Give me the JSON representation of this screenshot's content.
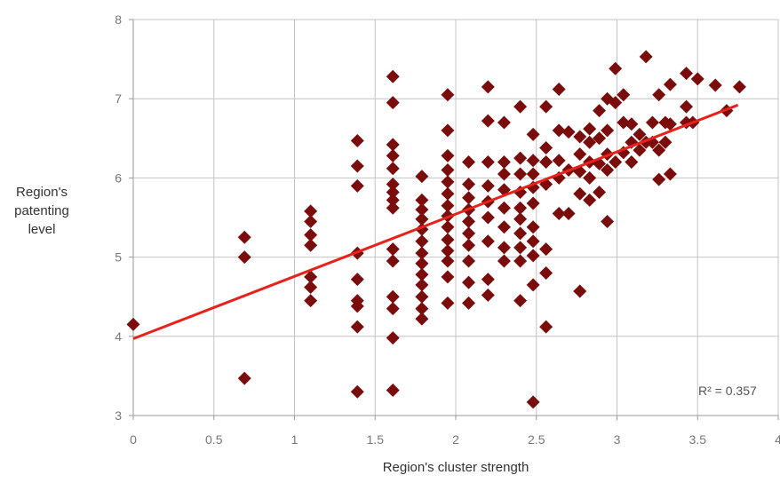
{
  "chart_data": {
    "type": "scatter",
    "xlabel_lines": [
      "Region's cluster strength"
    ],
    "ylabel_lines": [
      "Region's",
      "patenting",
      "level"
    ],
    "xlim": [
      0,
      4
    ],
    "ylim": [
      3,
      8
    ],
    "x_ticks": [
      "0",
      "0.5",
      "1",
      "1.5",
      "2",
      "2.5",
      "3",
      "3.5",
      "4"
    ],
    "y_ticks": [
      "3",
      "4",
      "5",
      "6",
      "7",
      "8"
    ],
    "grid": true,
    "marker": "diamond",
    "marker_color": "#7b0c0c",
    "trendline": {
      "color": "#e8221b",
      "x": [
        0,
        3.75
      ],
      "y": [
        3.97,
        6.92
      ]
    },
    "r_squared_label": "R² = 0.357",
    "points": [
      [
        0,
        4.15
      ],
      [
        0.69,
        5.25
      ],
      [
        0.69,
        5.0
      ],
      [
        0.69,
        3.47
      ],
      [
        1.1,
        5.58
      ],
      [
        1.1,
        5.45
      ],
      [
        1.1,
        5.28
      ],
      [
        1.1,
        5.15
      ],
      [
        1.1,
        4.75
      ],
      [
        1.1,
        4.62
      ],
      [
        1.1,
        4.45
      ],
      [
        1.39,
        6.47
      ],
      [
        1.39,
        6.15
      ],
      [
        1.39,
        5.9
      ],
      [
        1.39,
        5.05
      ],
      [
        1.39,
        4.72
      ],
      [
        1.39,
        4.45
      ],
      [
        1.39,
        4.38
      ],
      [
        1.39,
        4.12
      ],
      [
        1.39,
        3.3
      ],
      [
        1.61,
        7.28
      ],
      [
        1.61,
        6.95
      ],
      [
        1.61,
        6.42
      ],
      [
        1.61,
        6.28
      ],
      [
        1.61,
        6.12
      ],
      [
        1.61,
        5.92
      ],
      [
        1.61,
        5.82
      ],
      [
        1.61,
        5.72
      ],
      [
        1.61,
        5.62
      ],
      [
        1.61,
        5.1
      ],
      [
        1.61,
        4.95
      ],
      [
        1.61,
        4.5
      ],
      [
        1.61,
        4.35
      ],
      [
        1.61,
        3.98
      ],
      [
        1.61,
        3.32
      ],
      [
        1.79,
        6.02
      ],
      [
        1.79,
        5.72
      ],
      [
        1.79,
        5.6
      ],
      [
        1.79,
        5.48
      ],
      [
        1.79,
        5.35
      ],
      [
        1.79,
        5.2
      ],
      [
        1.79,
        5.05
      ],
      [
        1.79,
        4.92
      ],
      [
        1.79,
        4.78
      ],
      [
        1.79,
        4.65
      ],
      [
        1.79,
        4.5
      ],
      [
        1.79,
        4.35
      ],
      [
        1.79,
        4.22
      ],
      [
        1.95,
        7.05
      ],
      [
        1.95,
        6.6
      ],
      [
        1.95,
        6.28
      ],
      [
        1.95,
        6.1
      ],
      [
        1.95,
        5.95
      ],
      [
        1.95,
        5.8
      ],
      [
        1.95,
        5.65
      ],
      [
        1.95,
        5.52
      ],
      [
        1.95,
        5.38
      ],
      [
        1.95,
        5.22
      ],
      [
        1.95,
        5.08
      ],
      [
        1.95,
        4.95
      ],
      [
        1.95,
        4.75
      ],
      [
        1.95,
        4.42
      ],
      [
        2.08,
        6.2
      ],
      [
        2.08,
        5.92
      ],
      [
        2.08,
        5.75
      ],
      [
        2.08,
        5.6
      ],
      [
        2.08,
        5.45
      ],
      [
        2.08,
        5.3
      ],
      [
        2.08,
        5.15
      ],
      [
        2.08,
        4.95
      ],
      [
        2.08,
        4.68
      ],
      [
        2.08,
        4.42
      ],
      [
        2.2,
        7.15
      ],
      [
        2.2,
        6.72
      ],
      [
        2.2,
        6.2
      ],
      [
        2.2,
        5.9
      ],
      [
        2.2,
        5.7
      ],
      [
        2.2,
        5.5
      ],
      [
        2.2,
        5.2
      ],
      [
        2.2,
        4.72
      ],
      [
        2.2,
        4.52
      ],
      [
        2.3,
        6.7
      ],
      [
        2.3,
        6.2
      ],
      [
        2.3,
        6.05
      ],
      [
        2.3,
        5.85
      ],
      [
        2.3,
        5.62
      ],
      [
        2.3,
        5.38
      ],
      [
        2.3,
        5.12
      ],
      [
        2.3,
        4.95
      ],
      [
        2.4,
        6.9
      ],
      [
        2.4,
        6.25
      ],
      [
        2.4,
        6.05
      ],
      [
        2.4,
        5.82
      ],
      [
        2.4,
        5.62
      ],
      [
        2.4,
        5.48
      ],
      [
        2.4,
        5.3
      ],
      [
        2.4,
        5.12
      ],
      [
        2.4,
        4.95
      ],
      [
        2.4,
        4.45
      ],
      [
        2.48,
        6.55
      ],
      [
        2.48,
        6.22
      ],
      [
        2.48,
        6.05
      ],
      [
        2.48,
        5.88
      ],
      [
        2.48,
        5.68
      ],
      [
        2.48,
        5.38
      ],
      [
        2.48,
        5.2
      ],
      [
        2.48,
        5.02
      ],
      [
        2.48,
        4.65
      ],
      [
        2.48,
        3.17
      ],
      [
        2.56,
        6.9
      ],
      [
        2.56,
        6.38
      ],
      [
        2.56,
        6.2
      ],
      [
        2.56,
        5.92
      ],
      [
        2.56,
        5.1
      ],
      [
        2.56,
        4.8
      ],
      [
        2.56,
        4.12
      ],
      [
        2.64,
        7.12
      ],
      [
        2.64,
        6.6
      ],
      [
        2.64,
        6.22
      ],
      [
        2.64,
        6.0
      ],
      [
        2.64,
        5.55
      ],
      [
        2.7,
        6.58
      ],
      [
        2.7,
        6.1
      ],
      [
        2.7,
        5.55
      ],
      [
        2.77,
        6.52
      ],
      [
        2.77,
        6.3
      ],
      [
        2.77,
        6.08
      ],
      [
        2.77,
        5.8
      ],
      [
        2.77,
        4.57
      ],
      [
        2.83,
        6.62
      ],
      [
        2.83,
        6.45
      ],
      [
        2.83,
        6.2
      ],
      [
        2.83,
        6.0
      ],
      [
        2.83,
        5.72
      ],
      [
        2.89,
        6.85
      ],
      [
        2.89,
        6.5
      ],
      [
        2.89,
        6.18
      ],
      [
        2.89,
        5.82
      ],
      [
        2.94,
        7.0
      ],
      [
        2.94,
        6.6
      ],
      [
        2.94,
        6.3
      ],
      [
        2.94,
        6.1
      ],
      [
        2.94,
        5.45
      ],
      [
        2.99,
        7.38
      ],
      [
        2.99,
        6.95
      ],
      [
        2.99,
        6.2
      ],
      [
        3.04,
        7.05
      ],
      [
        3.04,
        6.7
      ],
      [
        3.04,
        6.32
      ],
      [
        3.09,
        6.68
      ],
      [
        3.09,
        6.45
      ],
      [
        3.09,
        6.2
      ],
      [
        3.14,
        6.55
      ],
      [
        3.14,
        6.35
      ],
      [
        3.18,
        7.53
      ],
      [
        3.18,
        6.45
      ],
      [
        3.22,
        6.7
      ],
      [
        3.22,
        6.45
      ],
      [
        3.26,
        7.05
      ],
      [
        3.26,
        6.35
      ],
      [
        3.26,
        5.98
      ],
      [
        3.3,
        6.7
      ],
      [
        3.3,
        6.45
      ],
      [
        3.33,
        7.18
      ],
      [
        3.33,
        6.68
      ],
      [
        3.33,
        6.05
      ],
      [
        3.43,
        7.32
      ],
      [
        3.43,
        6.9
      ],
      [
        3.43,
        6.7
      ],
      [
        3.47,
        6.7
      ],
      [
        3.5,
        7.25
      ],
      [
        3.61,
        7.17
      ],
      [
        3.68,
        6.85
      ],
      [
        3.76,
        7.15
      ]
    ]
  }
}
